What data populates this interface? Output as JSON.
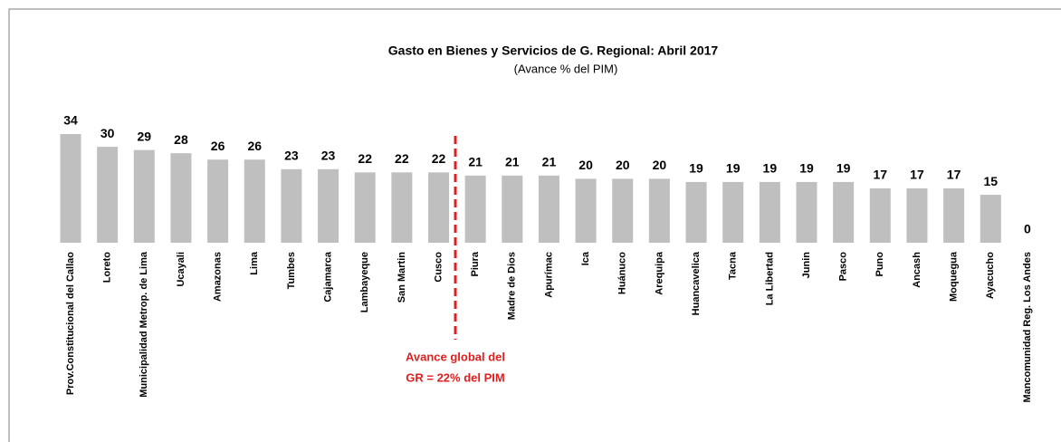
{
  "chart_data": {
    "type": "bar",
    "title": "Gasto en Bienes y Servicios de G. Regional: Abril 2017",
    "subtitle": "(Avance % del PIM)",
    "categories": [
      "Prov.Constitucional del Callao",
      "Loreto",
      "Municipalidad Metrop. de Lima",
      "Ucayali",
      "Amazonas",
      "Lima",
      "Tumbes",
      "Cajamarca",
      "Lambayeque",
      "San Martin",
      "Cusco",
      "Piura",
      "Madre de Dios",
      "Apurímac",
      "Ica",
      "Huánuco",
      "Arequipa",
      "Huancavelica",
      "Tacna",
      "La Libertad",
      "Junin",
      "Pasco",
      "Puno",
      "Ancash",
      "Moquegua",
      "Ayacucho",
      "Mancomunidad Reg. Los Andes"
    ],
    "values": [
      34,
      30,
      29,
      28,
      26,
      26,
      23,
      23,
      22,
      22,
      22,
      21,
      21,
      21,
      20,
      20,
      20,
      19,
      19,
      19,
      19,
      19,
      17,
      17,
      17,
      15,
      0
    ],
    "color": "#bfbfbf",
    "annotation": [
      "Avance global del",
      "GR = 22% del PIM"
    ],
    "annotation_color": "#e02020"
  }
}
